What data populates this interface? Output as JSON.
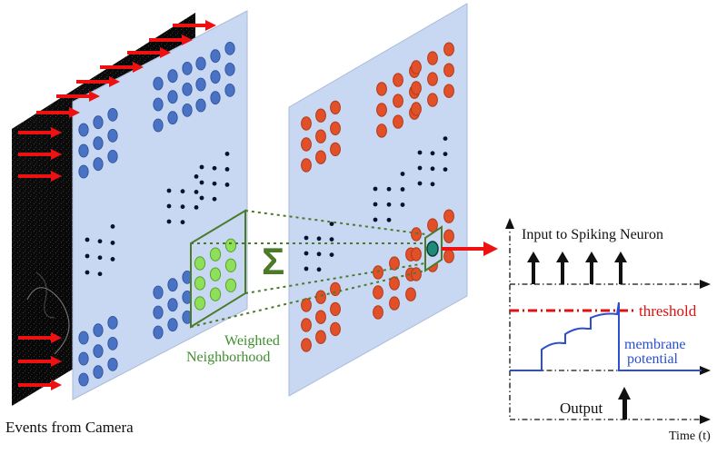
{
  "labels": {
    "events_from_camera": "Events from Camera",
    "weighted_line1": "Weighted",
    "weighted_line2": "Neighborhood",
    "sigma": "Σ",
    "input_to_spiking_neuron": "Input to Spiking Neuron",
    "threshold": "threshold",
    "membrane_line1": "membrane",
    "membrane_line2": "potential",
    "output": "Output",
    "time_axis": "Time (t)"
  },
  "colors": {
    "plane_fill": "#c8d8f2",
    "blue_neuron": "#4a72c4",
    "red_neuron": "#e2502a",
    "red_neuron_stroke": "#b03a1a",
    "green_neuron": "#8ee05a",
    "neighborhood_border": "#4b7a2a",
    "weighted_text": "#3f8f2e",
    "threshold": "#e01010",
    "membrane": "#2b4fd0",
    "event_arrow": "#ee1111",
    "sigma": "#4b7a2a"
  },
  "icons": {
    "event_arrow": "right-arrow-icon",
    "spike": "up-arrow-icon"
  },
  "spikes": {
    "input_count": 4,
    "output_count": 1
  }
}
